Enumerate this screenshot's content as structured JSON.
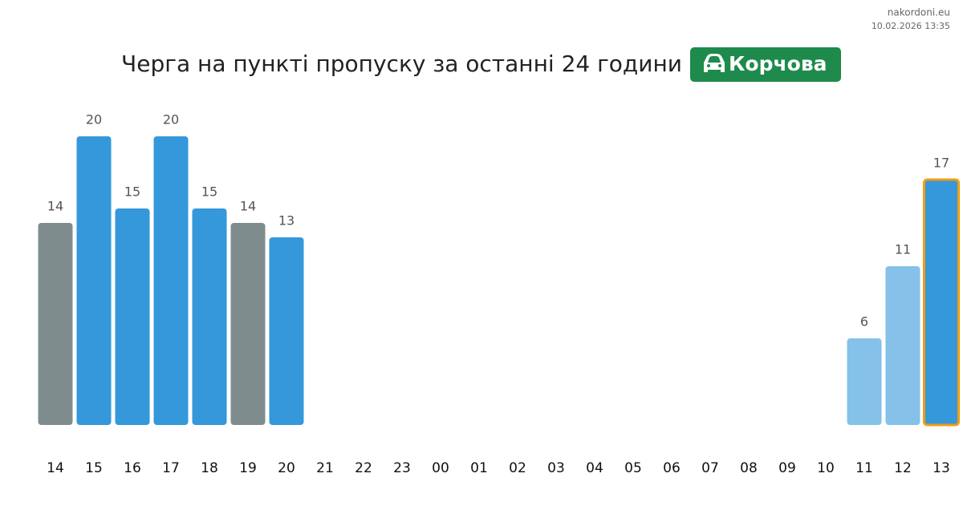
{
  "chart_data": {
    "type": "bar",
    "site": "nakordoni.eu",
    "timestamp": "10.02.2026 13:35",
    "title": "Черга на пункті пропуску за останні 24 години",
    "badge": "Корчова",
    "badge_color": "#1e8a4c",
    "categories": [
      "14",
      "15",
      "16",
      "17",
      "18",
      "19",
      "20",
      "21",
      "22",
      "23",
      "00",
      "01",
      "02",
      "03",
      "04",
      "05",
      "06",
      "07",
      "08",
      "09",
      "10",
      "11",
      "12",
      "13"
    ],
    "values": [
      14,
      20,
      15,
      20,
      15,
      14,
      13,
      null,
      null,
      null,
      null,
      null,
      null,
      null,
      null,
      null,
      null,
      null,
      null,
      null,
      null,
      6,
      11,
      17
    ],
    "colors": [
      "#7f8c8d",
      "#3498db",
      "#3498db",
      "#3498db",
      "#3498db",
      "#7f8c8d",
      "#3498db",
      null,
      null,
      null,
      null,
      null,
      null,
      null,
      null,
      null,
      null,
      null,
      null,
      null,
      null,
      "#85c1e9",
      "#85c1e9",
      "#3498db"
    ],
    "outline": {
      "index": 23,
      "color": "#f39c12"
    }
  }
}
